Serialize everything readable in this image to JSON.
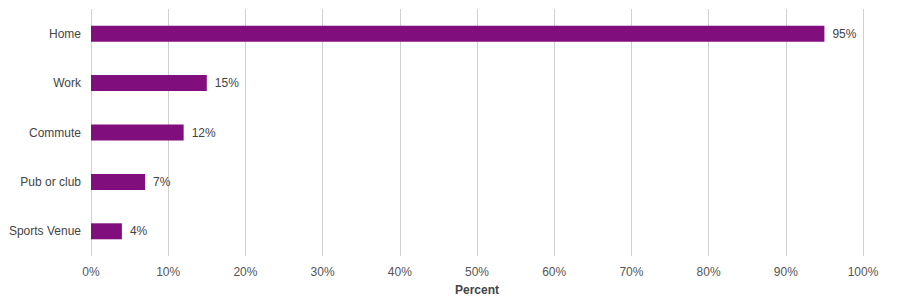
{
  "chart_data": {
    "type": "bar",
    "orientation": "horizontal",
    "categories": [
      "Home",
      "Work",
      "Commute",
      "Pub or club",
      "Sports Venue"
    ],
    "values": [
      95,
      15,
      12,
      7,
      4
    ],
    "value_labels": [
      "95%",
      "15%",
      "12%",
      "7%",
      "4%"
    ],
    "data_labels": true,
    "color": "#800f7d",
    "xlabel": "Percent",
    "xlim": [
      0,
      100
    ],
    "xticks": [
      {
        "value": 0,
        "label": "0%"
      },
      {
        "value": 10,
        "label": "10%"
      },
      {
        "value": 20,
        "label": "20%"
      },
      {
        "value": 30,
        "label": "30%"
      },
      {
        "value": 40,
        "label": "40%"
      },
      {
        "value": 50,
        "label": "50%"
      },
      {
        "value": 60,
        "label": "60%"
      },
      {
        "value": 70,
        "label": "70%"
      },
      {
        "value": 80,
        "label": "80%"
      },
      {
        "value": 90,
        "label": "90%"
      },
      {
        "value": 100,
        "label": "100%"
      }
    ],
    "grid": true
  }
}
